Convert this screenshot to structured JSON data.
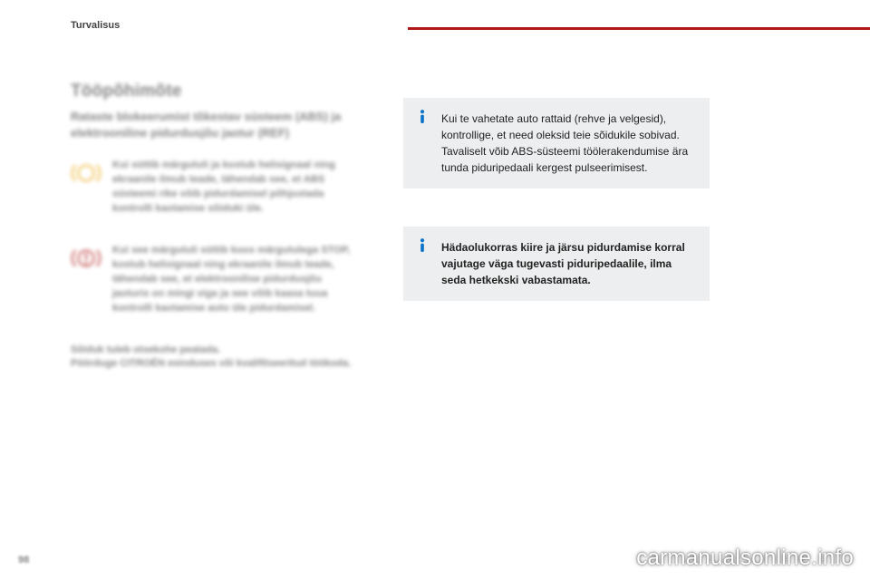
{
  "header": {
    "section": "Turvalisus"
  },
  "left": {
    "title": "Tööpõhimõte",
    "subhead": "Rataste blokeerumist tõkestav süsteem (ABS) ja elektrooniline pidurdusjõu jaotur (REF)",
    "block1": "Kui süttib märgutuli ja kostub helisignaal ning ekraanile ilmub teade, tähendab see, et ABS süsteemi rike võib pidurdamisel põhjustada kontrolli kaotamise sõiduki üle.",
    "block2": "Kui see märgutuli süttib koos märgutulega STOP, kostub helisignaal ning ekraanile ilmub teade, tähendab see, et elektroonilise pidurdusjõu jaoturis on mingi viga ja see võib kaasa tuua kontrolli kaotamise auto üle pidurdamisel.",
    "bottom": "Sõiduk tuleb otsekohe peatada.\nPöörduge CITROËN esinduses või kvalifitseeritud töökoda."
  },
  "right": {
    "box1": "Kui te vahetate auto rattaid (rehve ja velgesid), kontrollige, et need oleksid teie sõidukile sobivad.\nTavaliselt võib ABS-süsteemi töölerakendumise ära tunda piduripedaali kergest pulseerimisest.",
    "box2": "Hädaolukorras kiire ja järsu pidurdamise korral vajutage väga tugevasti piduripedaalile, ilma seda hetkekski vabastamata."
  },
  "footer": {
    "page": "98",
    "watermark": "carmanualsonline.info"
  },
  "colors": {
    "accent_red": "#b01818",
    "icon_amber": "#e9a400",
    "info_bg": "#eceeef",
    "i_blue": "#0a72c8"
  }
}
